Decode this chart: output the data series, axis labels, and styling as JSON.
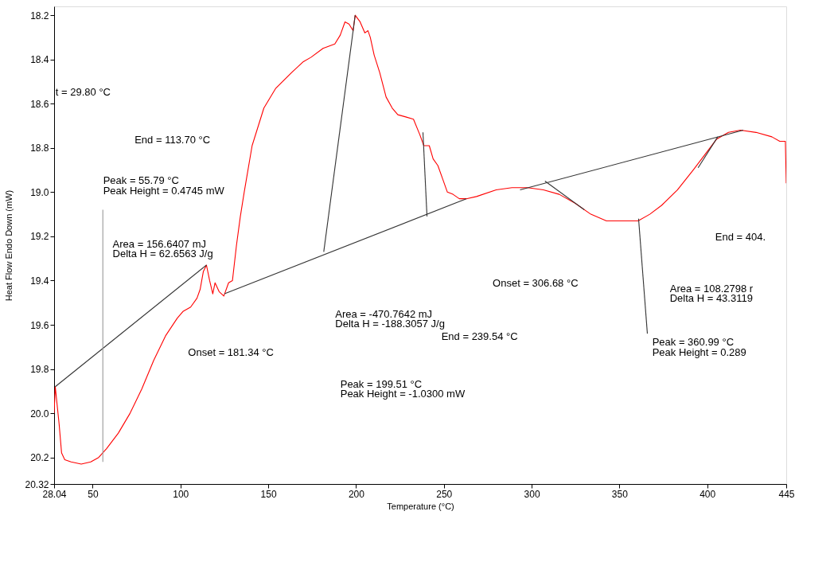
{
  "chart_data": {
    "type": "line",
    "xlabel": "Temperature (°C)",
    "ylabel": "Heat Flow Endo Down (mW)",
    "xlim": [
      28.04,
      445
    ],
    "xticks": [
      {
        "value": 28.04,
        "label": "28.04"
      },
      50,
      100,
      150,
      200,
      250,
      300,
      350,
      400,
      445
    ],
    "ylim": [
      20.32,
      18.16
    ],
    "yticks": [
      {
        "value": 18.2,
        "label": "18.2"
      },
      {
        "value": 18.4,
        "label": "18.4"
      },
      {
        "value": 18.6,
        "label": "18.6"
      },
      {
        "value": 18.8,
        "label": "18.8"
      },
      {
        "value": 19,
        "label": "19.0"
      },
      {
        "value": 19.2,
        "label": "19.2"
      },
      {
        "value": 19.4,
        "label": "19.4"
      },
      {
        "value": 19.6,
        "label": "19.6"
      },
      {
        "value": 19.8,
        "label": "19.8"
      },
      {
        "value": 20,
        "label": "20.0"
      },
      {
        "value": 20.2,
        "label": "20.2"
      },
      {
        "value": 20.32,
        "label": "20.32"
      }
    ],
    "grid": false,
    "marker": "none",
    "line_style": "solid",
    "series": [
      {
        "color": "#ff0000",
        "x": [
          28.04,
          28.7,
          30.9,
          32.3,
          34.1,
          37.7,
          43.5,
          48.9,
          53.4,
          57.9,
          64.6,
          71.3,
          78.0,
          84.8,
          91.5,
          98.2,
          101.4,
          105.8,
          109.4,
          111.2,
          113.0,
          114.8,
          116.6,
          118.4,
          119.7,
          122.0,
          124.7,
          127.4,
          129.6,
          131.9,
          134.1,
          136.3,
          140.8,
          147.5,
          154.3,
          163.2,
          170.0,
          174.4,
          181.2,
          187.9,
          191.0,
          193.7,
          196.0,
          198.3,
          199.5,
          202.3,
          205.0,
          206.8,
          208.1,
          210.3,
          213.5,
          217.1,
          220.6,
          223.8,
          228.3,
          232.7,
          236.3,
          238.6,
          241.7,
          243.9,
          246.6,
          249.3,
          252.0,
          255.2,
          258.8,
          262.8,
          268.6,
          279.8,
          288.8,
          297.7,
          306.7,
          315.7,
          324.7,
          333.7,
          342.6,
          351.6,
          360.6,
          367.3,
          374.0,
          383.0,
          392.0,
          398.7,
          405.4,
          412.1,
          418.9,
          427.8,
          436.8,
          441.3,
          444.5,
          445
        ],
        "values": [
          20.0,
          19.88,
          20.05,
          20.18,
          20.21,
          20.22,
          20.23,
          20.22,
          20.2,
          20.16,
          20.09,
          20.0,
          19.89,
          19.76,
          19.65,
          19.57,
          19.54,
          19.52,
          19.48,
          19.44,
          19.36,
          19.33,
          19.4,
          19.46,
          19.41,
          19.45,
          19.47,
          19.41,
          19.4,
          19.24,
          19.11,
          19.0,
          18.79,
          18.62,
          18.53,
          18.46,
          18.41,
          18.39,
          18.35,
          18.33,
          18.29,
          18.23,
          18.24,
          18.27,
          18.2,
          18.23,
          18.28,
          18.27,
          18.3,
          18.38,
          18.46,
          18.57,
          18.62,
          18.65,
          18.66,
          18.67,
          18.74,
          18.79,
          18.79,
          18.85,
          18.88,
          18.94,
          19.0,
          19.01,
          19.03,
          19.03,
          19.02,
          18.99,
          18.98,
          18.98,
          18.99,
          19.01,
          19.05,
          19.1,
          19.13,
          19.13,
          19.13,
          19.1,
          19.06,
          18.99,
          18.9,
          18.83,
          18.76,
          18.73,
          18.72,
          18.73,
          18.75,
          18.77,
          18.77,
          18.96
        ]
      },
      {
        "color": "#333333",
        "x": [
          28.7,
          114.8
        ],
        "values": [
          19.88,
          19.33
        ]
      },
      {
        "color": "#333333",
        "x": [
          125.1,
          262.8
        ],
        "values": [
          19.46,
          19.03
        ]
      },
      {
        "color": "#333333",
        "x": [
          293.4,
          420.5
        ],
        "values": [
          18.99,
          18.72
        ]
      },
      {
        "color": "#333333",
        "x": [
          181.6,
          199.5
        ],
        "values": [
          19.27,
          18.2
        ]
      },
      {
        "color": "#999999",
        "x": [
          55.79,
          55.79
        ],
        "values": [
          19.08,
          20.22
        ]
      },
      {
        "color": "#333333",
        "x": [
          238.1,
          240.4
        ],
        "values": [
          18.73,
          19.11
        ]
      },
      {
        "color": "#333333",
        "x": [
          307.6,
          330.0
        ],
        "values": [
          18.95,
          19.08
        ]
      },
      {
        "color": "#333333",
        "x": [
          360.9,
          365.9
        ],
        "values": [
          19.12,
          19.64
        ]
      },
      {
        "color": "#333333",
        "x": [
          394.8,
          406.0
        ],
        "values": [
          18.89,
          18.75
        ]
      }
    ],
    "annotations": [
      "t = 29.80 °C",
      "End = 113.70 °C",
      "Peak = 55.79 °C",
      "Peak Height = 0.4745 mW",
      "Area = 156.6407 mJ",
      "Delta H = 62.6563 J/g",
      "Onset = 181.34 °C",
      "Area = -470.7642 mJ",
      "Delta H = -188.3057 J/g",
      "End = 239.54 °C",
      "Peak = 199.51 °C",
      "Peak Height = -1.0300 mW",
      "Onset = 306.68 °C",
      "Area = 108.2798 r",
      "Delta H = 43.3119",
      "Peak = 360.99 °C",
      "Peak Height = 0.289",
      "End = 404."
    ]
  }
}
